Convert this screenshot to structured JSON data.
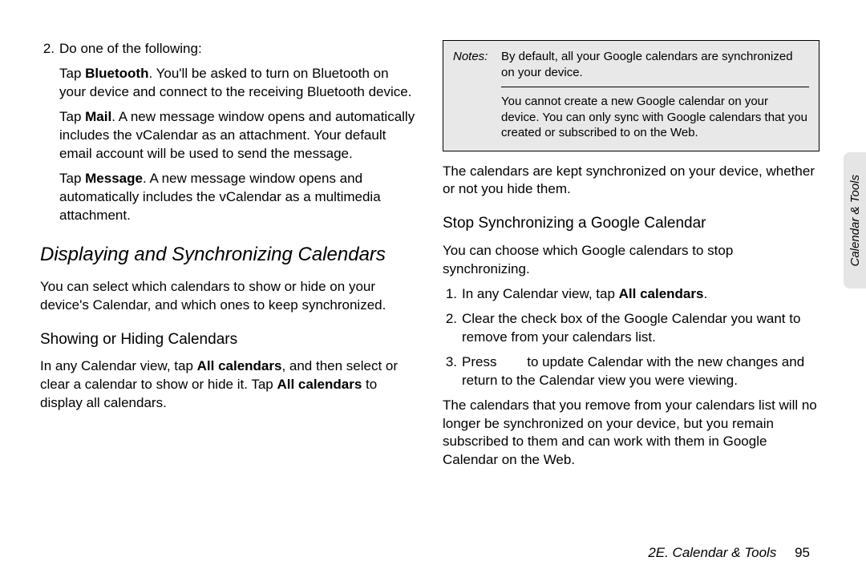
{
  "left": {
    "step2_num": "2.",
    "step2_text": "Do one of the following:",
    "bt_label": "Bluetooth",
    "bt_text_pre": "Tap ",
    "bt_text_post": ". You'll be asked to turn on Bluetooth on your device and connect to the receiving Bluetooth device.",
    "mail_label": "Mail",
    "mail_text_pre": "Tap ",
    "mail_text_post": ". A new message window opens and automatically includes the vCalendar as an attachment. Your default email account will be used to send the message.",
    "msg_label": "Message",
    "msg_text_pre": "Tap ",
    "msg_text_post": ". A new message window opens and automatically includes the vCalendar as a multimedia attachment.",
    "h1": "Displaying and Synchronizing Calendars",
    "p1": "You can select which calendars to show or hide on your device's Calendar, and which ones to keep synchronized.",
    "h2": "Showing or Hiding Calendars",
    "p2a": "In any Calendar view, tap ",
    "p2_bold1": "All calendars",
    "p2b": ", and then select or clear a calendar to show or hide it. Tap ",
    "p2_bold2": "All calendars",
    "p2c": " to display all calendars."
  },
  "right": {
    "notes_label": "Notes:",
    "note1": "By default, all your Google calendars are synchronized on your device.",
    "note2": "You cannot create a new Google calendar on your device. You can only sync with Google calendars that you created or subscribed to on the Web.",
    "p_after_notes": "The calendars are kept synchronized on your device, whether or not you hide them.",
    "h2": "Stop Synchronizing a Google Calendar",
    "p_intro": "You can choose which Google calendars to stop synchronizing.",
    "s1_num": "1.",
    "s1a": "In any Calendar view, tap ",
    "s1_bold": "All calendars",
    "s1b": ".",
    "s2_num": "2.",
    "s2": "Clear the check box of the Google Calendar you want to remove from your calendars list.",
    "s3_num": "3.",
    "s3a": "Press ",
    "s3b": " to update Calendar with the new changes and return to the Calendar view you were viewing.",
    "p_end": "The calendars that you remove from your calendars list will no longer be synchronized on your device, but you remain subscribed to them and can work with them in Google Calendar on the Web."
  },
  "tab_label": "Calendar & Tools",
  "footer_section": "2E. Calendar & Tools",
  "footer_page": "95"
}
